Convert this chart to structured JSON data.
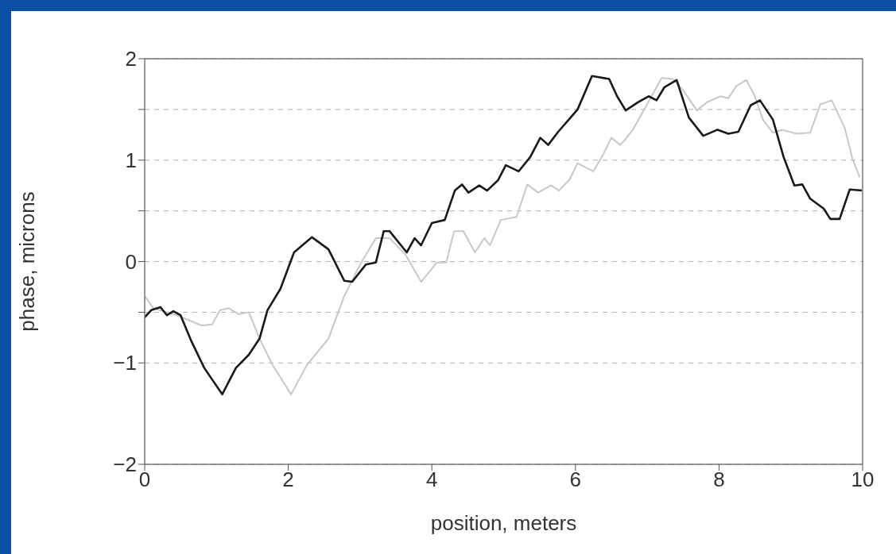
{
  "chart_data": {
    "type": "line",
    "xlabel": "position, meters",
    "ylabel": "phase, microns",
    "xlim": [
      0,
      10
    ],
    "xticks": [
      0,
      2,
      4,
      6,
      8,
      10
    ],
    "ylim": [
      -2,
      2
    ],
    "yticks": [
      -2,
      -1,
      {
        "value": -0.5,
        "label": null
      },
      0,
      {
        "value": 0.5,
        "label": null
      },
      1,
      {
        "value": 1.5,
        "label": null
      },
      2
    ],
    "grid": "y",
    "legend": false,
    "marker": "none",
    "line_style": "solid",
    "series": [
      {
        "color": "#c8c8c8",
        "x": [
          0,
          0.12,
          0.45,
          0.79,
          0.94,
          1.05,
          1.17,
          1.31,
          1.45,
          1.6,
          1.78,
          2.04,
          2.26,
          2.56,
          2.78,
          3.0,
          3.22,
          3.41,
          3.63,
          3.85,
          4.07,
          4.2,
          4.31,
          4.44,
          4.6,
          4.73,
          4.81,
          4.96,
          5.18,
          5.33,
          5.48,
          5.66,
          5.77,
          5.92,
          6.03,
          6.25,
          6.39,
          6.5,
          6.62,
          6.69,
          6.8,
          7.02,
          7.2,
          7.36,
          7.5,
          7.69,
          7.83,
          8.02,
          8.13,
          8.24,
          8.38,
          8.5,
          8.61,
          8.75,
          8.88,
          9.08,
          9.27,
          9.41,
          9.57,
          9.75,
          9.86,
          9.96
        ],
        "values": [
          -0.34,
          -0.46,
          -0.53,
          -0.63,
          -0.62,
          -0.48,
          -0.46,
          -0.52,
          -0.5,
          -0.76,
          -1.02,
          -1.31,
          -1.02,
          -0.76,
          -0.34,
          -0.03,
          0.23,
          0.23,
          0.07,
          -0.2,
          -0.01,
          -0.01,
          0.3,
          0.3,
          0.09,
          0.23,
          0.16,
          0.41,
          0.44,
          0.76,
          0.68,
          0.75,
          0.7,
          0.81,
          0.97,
          0.89,
          1.06,
          1.22,
          1.15,
          1.2,
          1.3,
          1.58,
          1.81,
          1.8,
          1.69,
          1.49,
          1.57,
          1.63,
          1.61,
          1.73,
          1.79,
          1.63,
          1.4,
          1.27,
          1.3,
          1.26,
          1.27,
          1.55,
          1.59,
          1.32,
          1.01,
          0.83
        ]
      },
      {
        "color": "#1a1a1a",
        "x": [
          0,
          0.09,
          0.22,
          0.31,
          0.4,
          0.5,
          0.64,
          0.83,
          1.08,
          1.27,
          1.45,
          1.6,
          1.71,
          1.89,
          2.08,
          2.33,
          2.56,
          2.78,
          2.89,
          3.08,
          3.22,
          3.33,
          3.41,
          3.65,
          3.76,
          3.85,
          4.0,
          4.18,
          4.32,
          4.42,
          4.51,
          4.66,
          4.77,
          4.92,
          5.03,
          5.21,
          5.37,
          5.51,
          5.62,
          5.76,
          5.92,
          6.03,
          6.23,
          6.47,
          6.58,
          6.7,
          6.87,
          7.02,
          7.13,
          7.24,
          7.41,
          7.58,
          7.78,
          7.98,
          8.13,
          8.27,
          8.44,
          8.57,
          8.75,
          8.9,
          9.05,
          9.16,
          9.27,
          9.46,
          9.55,
          9.68,
          9.82,
          9.99
        ],
        "values": [
          -0.55,
          -0.48,
          -0.45,
          -0.53,
          -0.49,
          -0.53,
          -0.77,
          -1.05,
          -1.31,
          -1.05,
          -0.92,
          -0.76,
          -0.48,
          -0.27,
          0.09,
          0.24,
          0.12,
          -0.19,
          -0.2,
          -0.03,
          -0.01,
          0.3,
          0.3,
          0.09,
          0.23,
          0.16,
          0.38,
          0.41,
          0.7,
          0.76,
          0.68,
          0.75,
          0.7,
          0.8,
          0.95,
          0.89,
          1.03,
          1.22,
          1.15,
          1.28,
          1.41,
          1.5,
          1.83,
          1.8,
          1.63,
          1.49,
          1.57,
          1.63,
          1.59,
          1.72,
          1.79,
          1.42,
          1.24,
          1.3,
          1.26,
          1.28,
          1.54,
          1.59,
          1.4,
          1.03,
          0.75,
          0.76,
          0.62,
          0.52,
          0.42,
          0.42,
          0.71,
          0.7
        ]
      }
    ]
  }
}
